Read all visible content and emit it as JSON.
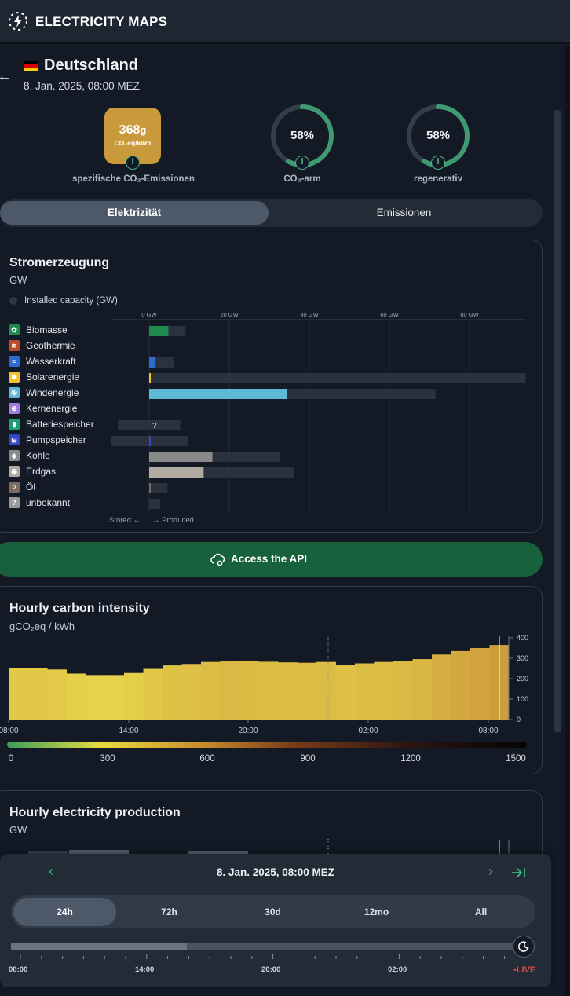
{
  "app": {
    "brand": "ELECTRICITY MAPS"
  },
  "zone": {
    "country": "Deutschland",
    "datetime": "8. Jan. 2025, 08:00 MEZ"
  },
  "metrics": {
    "carbon_intensity": {
      "value": "368",
      "unit_g": "g",
      "unit": "CO₂eq/kWh",
      "label": "spezifische CO₂-Emissionen",
      "color": "#c99a3c"
    },
    "low_carbon": {
      "value": "58%",
      "fraction": 0.58,
      "label": "CO₂-arm"
    },
    "renewable": {
      "value": "58%",
      "fraction": 0.58,
      "label": "regenerativ"
    }
  },
  "tabs": {
    "electricity": "Elektrizität",
    "emissions": "Emissionen",
    "active": "electricity"
  },
  "production_card": {
    "title": "Stromerzeugung",
    "unit": "GW",
    "legend": "Installed capacity (GW)",
    "axis_ticks": [
      "0 GW",
      "20 GW",
      "40 GW",
      "60 GW",
      "80 GW"
    ],
    "stored_label": "Stored ←",
    "produced_label": "→ Produced",
    "unknown_mark": "?",
    "sources": [
      {
        "name": "Biomasse",
        "icon": "plant-icon",
        "color": "#1f8a4c",
        "produced": 4.8,
        "capacity": 9.1
      },
      {
        "name": "Geothermie",
        "icon": "geothermal-icon",
        "color": "#b84c28",
        "produced": 0,
        "capacity": 0
      },
      {
        "name": "Wasserkraft",
        "icon": "water-icon",
        "color": "#2d6bd1",
        "produced": 1.6,
        "capacity": 6.3
      },
      {
        "name": "Solarenergie",
        "icon": "sun-icon",
        "color": "#f2c12e",
        "produced": 0.3,
        "capacity": 94
      },
      {
        "name": "Windenergie",
        "icon": "wind-icon",
        "color": "#5fb8d6",
        "produced": 34.5,
        "capacity": 71.5
      },
      {
        "name": "Kernenergie",
        "icon": "atom-icon",
        "color": "#9f7be0",
        "produced": 0,
        "capacity": 0
      },
      {
        "name": "Batteriespeicher",
        "icon": "battery-icon",
        "color": "#1f9e74",
        "produced": 0,
        "capacity": 7.8,
        "stored_capacity": 7.8
      },
      {
        "name": "Pumpspeicher",
        "icon": "pump-icon",
        "color": "#3347c9",
        "produced": 0.3,
        "capacity": 9.6,
        "stored_capacity": 9.6
      },
      {
        "name": "Kohle",
        "icon": "coal-icon",
        "color": "#8a8a8a",
        "produced": 15.8,
        "capacity": 32.6
      },
      {
        "name": "Erdgas",
        "icon": "gas-icon",
        "color": "#b0aaa0",
        "produced": 13.6,
        "capacity": 36.2
      },
      {
        "name": "Öl",
        "icon": "oil-icon",
        "color": "#7a6a60",
        "produced": 0.3,
        "capacity": 4.6
      },
      {
        "name": "unbekannt",
        "icon": "unknown-icon",
        "color": "#9a9a9a",
        "produced": 0,
        "capacity": 2.7
      }
    ]
  },
  "api": {
    "label": "Access the API"
  },
  "carbon_card": {
    "title": "Hourly carbon intensity",
    "unit": "gCO₂eq / kWh"
  },
  "production_history_card": {
    "title": "Hourly electricity production",
    "unit": "GW"
  },
  "chart_data": {
    "type": "bar",
    "title": "Hourly carbon intensity",
    "ylabel": "gCO₂eq / kWh",
    "x_ticks": [
      "08:00",
      "14:00",
      "20:00",
      "02:00",
      "08:00"
    ],
    "y_ticks": [
      "400",
      "300",
      "200",
      "100",
      "0"
    ],
    "ylim": [
      0,
      400
    ],
    "values": [
      250,
      250,
      245,
      225,
      218,
      218,
      228,
      248,
      265,
      272,
      282,
      288,
      285,
      283,
      280,
      278,
      282,
      268,
      275,
      282,
      288,
      296,
      318,
      335,
      350,
      365
    ],
    "colorbar": {
      "ticks": [
        "0",
        "300",
        "600",
        "900",
        "1200",
        "1500"
      ],
      "range": [
        0,
        1500
      ]
    }
  },
  "timebar": {
    "date": "8. Jan. 2025, 08:00 MEZ",
    "ranges": [
      "24h",
      "72h",
      "30d",
      "12mo",
      "All"
    ],
    "active_range": "24h",
    "slider_position": 1.0,
    "time_labels": [
      "08:00",
      "14:00",
      "20:00",
      "02:00"
    ],
    "live": "•LIVE"
  }
}
